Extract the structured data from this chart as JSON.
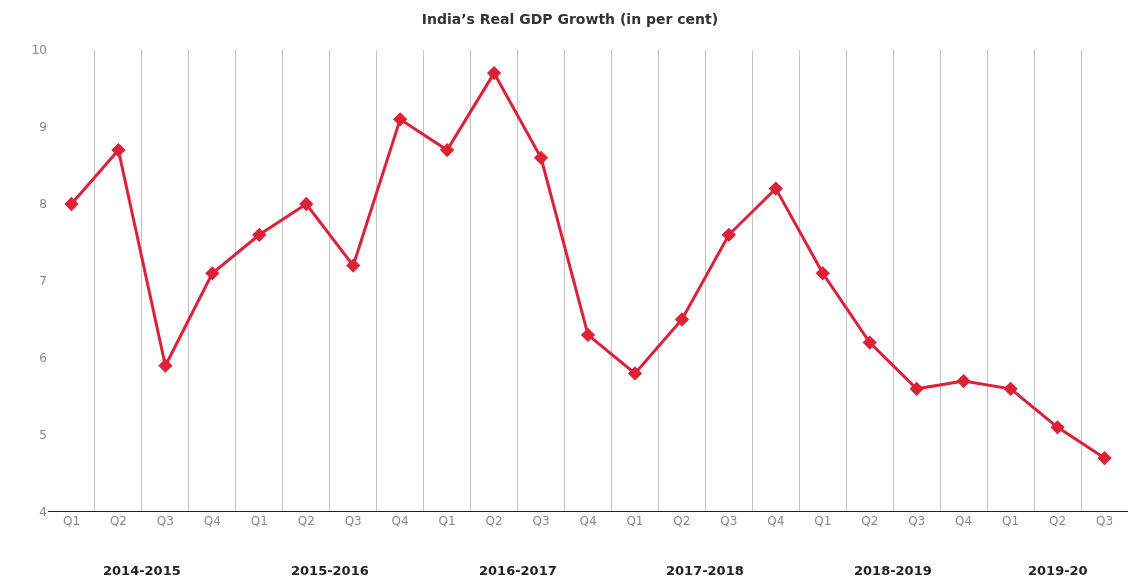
{
  "chart_data": {
    "type": "line",
    "title": "India’s Real GDP Growth (in per cent)",
    "categories": [
      "Q1",
      "Q2",
      "Q3",
      "Q4",
      "Q1",
      "Q2",
      "Q3",
      "Q4",
      "Q1",
      "Q2",
      "Q3",
      "Q4",
      "Q1",
      "Q2",
      "Q3",
      "Q4",
      "Q1",
      "Q2",
      "Q3",
      "Q4",
      "Q1",
      "Q2",
      "Q3"
    ],
    "series": [
      {
        "color": "#dc2238",
        "values": [
          8.0,
          8.7,
          5.9,
          7.1,
          7.6,
          8.0,
          7.2,
          9.1,
          8.7,
          9.7,
          8.6,
          6.3,
          5.8,
          6.5,
          7.6,
          8.2,
          7.1,
          6.2,
          5.6,
          5.7,
          5.6,
          5.1,
          4.7
        ]
      }
    ],
    "annotations": [
      "2014-2015",
      "2015-2016",
      "2016-2017",
      "2017-2018",
      "2018-2019",
      "2019-20"
    ],
    "ylim": [
      4,
      10
    ],
    "yticks": [
      4,
      5,
      6,
      7,
      8,
      9,
      10
    ],
    "grid": "x",
    "marker": "diamond",
    "line_style": "solid"
  }
}
